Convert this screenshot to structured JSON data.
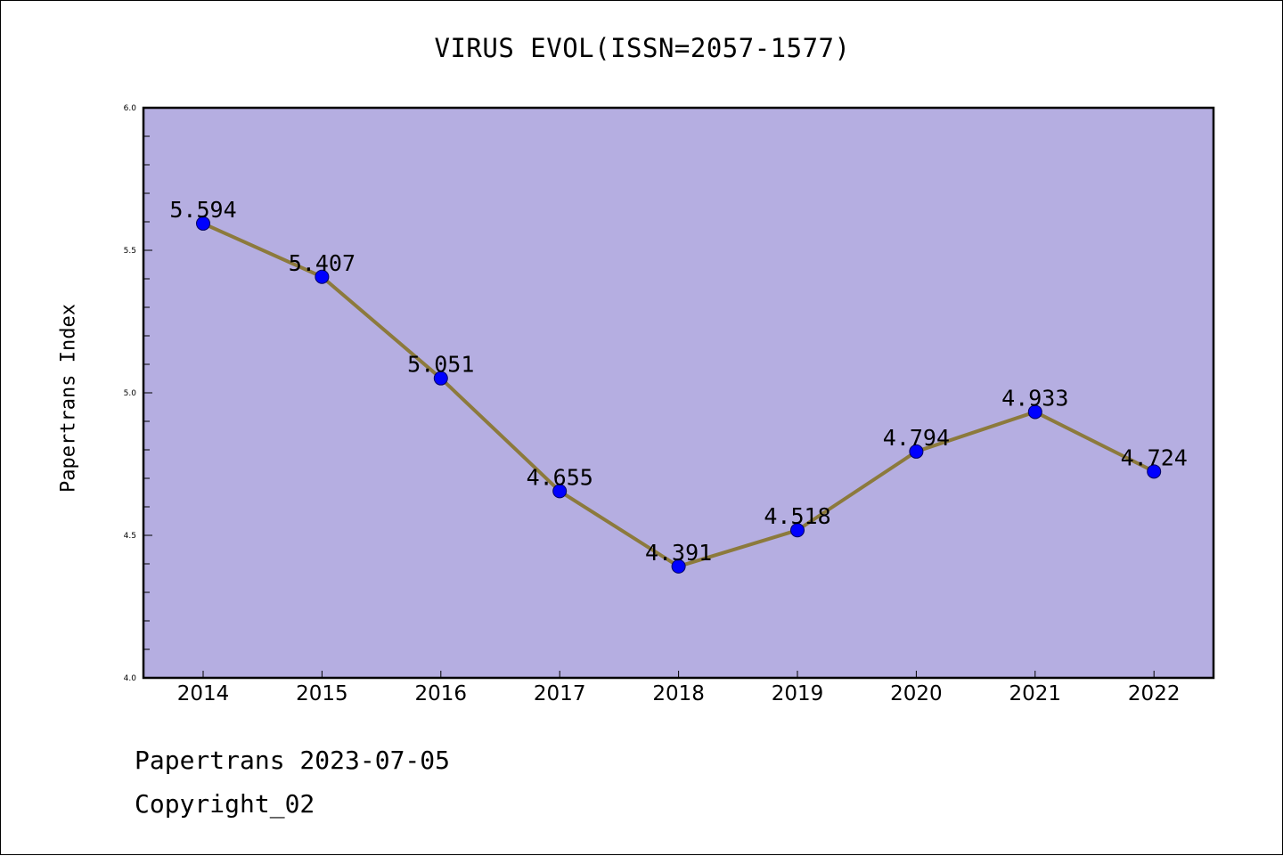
{
  "page": {
    "footer_date": "Papertrans 2023-07-05",
    "footer_copyright": "Copyright_02"
  },
  "chart_data": {
    "type": "line",
    "title": "VIRUS EVOL(ISSN=2057-1577)",
    "xlabel": "",
    "ylabel": "Papertrans Index",
    "categories": [
      "2014",
      "2015",
      "2016",
      "2017",
      "2018",
      "2019",
      "2020",
      "2021",
      "2022"
    ],
    "series": [
      {
        "values": [
          5.594,
          5.407,
          5.051,
          4.655,
          4.391,
          4.518,
          4.794,
          4.933,
          4.724
        ],
        "data_labels": [
          "5.594",
          "5.407",
          "5.051",
          "4.655",
          "4.391",
          "4.518",
          "4.794",
          "4.933",
          "4.724"
        ]
      }
    ],
    "ylim": [
      4.0,
      6.0
    ],
    "yticks": [
      "4.0",
      "4.5",
      "5.0",
      "5.5",
      "6.0"
    ],
    "ytick_values": [
      4.0,
      4.5,
      5.0,
      5.5,
      6.0
    ],
    "y_minor_step": 0.1,
    "grid": false,
    "colors": {
      "plot_background": "#b5aee1",
      "line": "#8c7a3c",
      "marker": "#0000ff",
      "axis": "#000000"
    }
  }
}
